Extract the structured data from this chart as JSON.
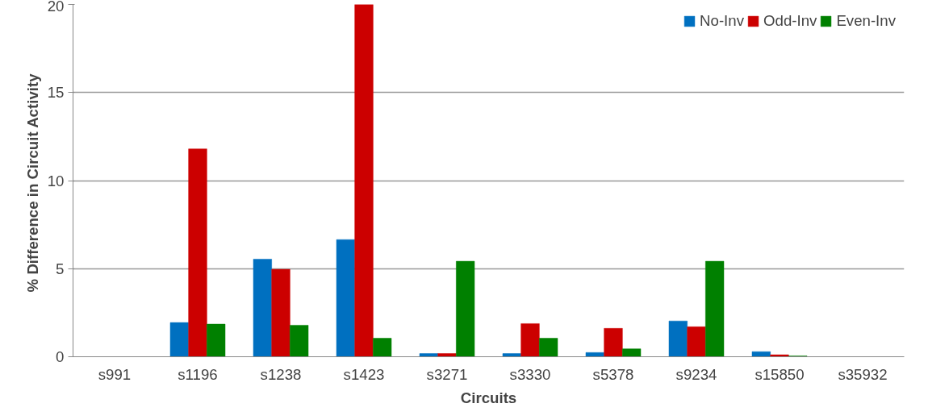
{
  "chart_data": {
    "type": "bar",
    "xlabel": "Circuits",
    "ylabel": "% Difference in Circuit  Activity",
    "categories": [
      "s991",
      "s1196",
      "s1238",
      "s1423",
      "s3271",
      "s3330",
      "s5378",
      "s9234",
      "s15850",
      "s35932"
    ],
    "series": [
      {
        "name": "No-Inv",
        "color": "#0070c0",
        "values": [
          0,
          1.94,
          5.54,
          6.65,
          0.18,
          0.18,
          0.24,
          2.03,
          0.29,
          0
        ]
      },
      {
        "name": "Odd-Inv",
        "color": "#cc0000",
        "values": [
          0,
          11.8,
          4.96,
          20,
          0.18,
          1.88,
          1.61,
          1.7,
          0.11,
          0
        ]
      },
      {
        "name": "Even-Inv",
        "color": "#008000",
        "values": [
          0,
          1.85,
          1.79,
          1.05,
          5.42,
          1.05,
          0.45,
          5.42,
          0.05,
          0
        ]
      }
    ],
    "ylim": [
      0,
      20
    ],
    "yticks": [
      0,
      5,
      10,
      15,
      20
    ],
    "grid": "y",
    "legend": "top right"
  }
}
